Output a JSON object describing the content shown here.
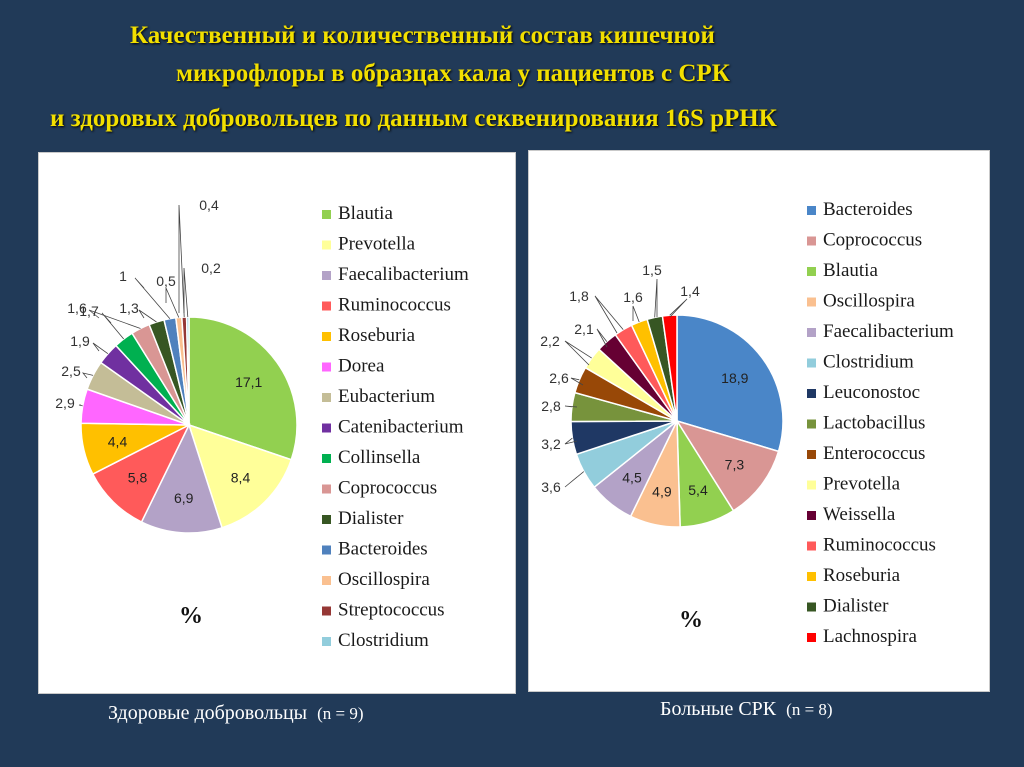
{
  "title": {
    "line1": "Качественный и количественный состав кишечной",
    "line2": "микрофлоры в образцах кала у пациентов с СРК",
    "line3": "и здоровых добровольцев по данным секвенирования 16S рРНК"
  },
  "healthy_caption": {
    "label": "Здоровые добровольцы",
    "n": "(n = 9)"
  },
  "ibs_caption": {
    "label": "Больные СРК",
    "n": "(n = 8)"
  },
  "chart_data": [
    {
      "type": "pie",
      "unit_label": "%",
      "legend_position": "right",
      "series": [
        {
          "name": "Blautia",
          "value": 17.1,
          "label": "17,1",
          "color": "#92d050"
        },
        {
          "name": "Prevotella",
          "value": 8.4,
          "label": "8,4",
          "color": "#ffff99"
        },
        {
          "name": "Faecalibacterium",
          "value": 6.9,
          "label": "6,9",
          "color": "#b3a2c7"
        },
        {
          "name": "Ruminococcus",
          "value": 5.8,
          "label": "5,8",
          "color": "#ff5a5a"
        },
        {
          "name": "Roseburia",
          "value": 4.4,
          "label": "4,4",
          "color": "#ffc000"
        },
        {
          "name": "Dorea",
          "value": 2.9,
          "label": "2,9",
          "color": "#ff66ff"
        },
        {
          "name": "Eubacterium",
          "value": 2.5,
          "label": "2,5",
          "color": "#c4bd97"
        },
        {
          "name": "Catenibacterium",
          "value": 1.9,
          "label": "1,9",
          "color": "#7030a0"
        },
        {
          "name": "Collinsella",
          "value": 1.7,
          "label": "1,7",
          "color": "#00b050"
        },
        {
          "name": "Coprococcus",
          "value": 1.6,
          "label": "1,6",
          "color": "#d99694"
        },
        {
          "name": "Dialister",
          "value": 1.3,
          "label": "1,3",
          "color": "#375623"
        },
        {
          "name": "Bacteroides",
          "value": 1.0,
          "label": "1",
          "color": "#4f81bd"
        },
        {
          "name": "Oscillospira",
          "value": 0.5,
          "label": "0,5",
          "color": "#fac090"
        },
        {
          "name": "Streptococcus",
          "value": 0.4,
          "label": "0,4",
          "color": "#953735"
        },
        {
          "name": "Clostridium",
          "value": 0.2,
          "label": "0,2",
          "color": "#92cddc"
        }
      ]
    },
    {
      "type": "pie",
      "unit_label": "%",
      "legend_position": "right",
      "series": [
        {
          "name": "Bacteroides",
          "value": 18.9,
          "label": "18,9",
          "color": "#4a86c8"
        },
        {
          "name": "Coprococcus",
          "value": 7.3,
          "label": "7,3",
          "color": "#d99694"
        },
        {
          "name": "Blautia",
          "value": 5.4,
          "label": "5,4",
          "color": "#92d050"
        },
        {
          "name": "Oscillospira",
          "value": 4.9,
          "label": "4,9",
          "color": "#fac090"
        },
        {
          "name": "Faecalibacterium",
          "value": 4.5,
          "label": "4,5",
          "color": "#b3a2c7"
        },
        {
          "name": "Clostridium",
          "value": 3.6,
          "label": "3,6",
          "color": "#92cddc"
        },
        {
          "name": "Leuconostoc",
          "value": 3.2,
          "label": "3,2",
          "color": "#1f3864"
        },
        {
          "name": "Lactobacillus",
          "value": 2.8,
          "label": "2,8",
          "color": "#77933c"
        },
        {
          "name": "Enterococcus",
          "value": 2.6,
          "label": "2,6",
          "color": "#984807"
        },
        {
          "name": "Prevotella",
          "value": 2.2,
          "label": "2,2",
          "color": "#ffff99"
        },
        {
          "name": "Weissella",
          "value": 2.1,
          "label": "2,1",
          "color": "#660033"
        },
        {
          "name": "Ruminococcus",
          "value": 1.8,
          "label": "1,8",
          "color": "#ff5a5a"
        },
        {
          "name": "Roseburia",
          "value": 1.6,
          "label": "1,6",
          "color": "#ffc000"
        },
        {
          "name": "Dialister",
          "value": 1.5,
          "label": "1,5",
          "color": "#375623"
        },
        {
          "name": "Lachnospira",
          "value": 1.4,
          "label": "1,4",
          "color": "#ff0000"
        }
      ]
    }
  ]
}
